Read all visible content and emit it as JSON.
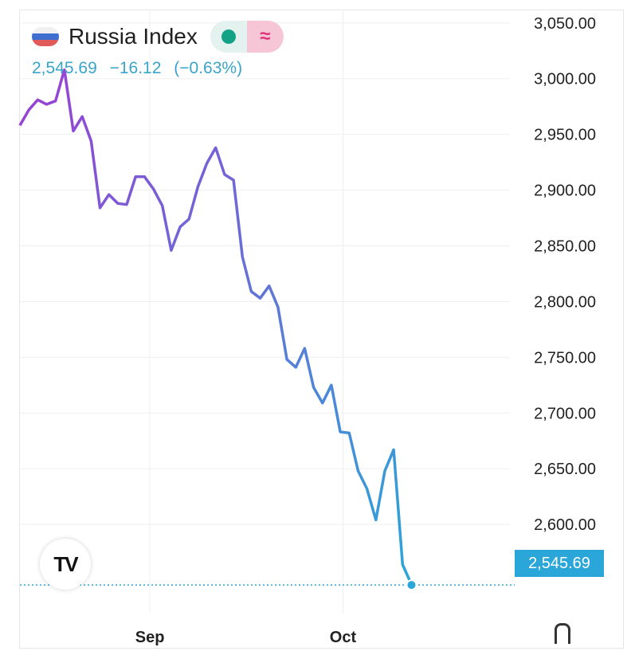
{
  "header": {
    "title": "Russia Index",
    "price": "2,545.69",
    "change": "−16.12",
    "change_pct": "(−0.63%)",
    "dot_icon": "status-dot-icon",
    "wave_icon": "approx-wave-icon",
    "wave_glyph": "≈",
    "flag_icon": "russia-flag-icon"
  },
  "tradingview_logo_text": "TV",
  "colors": {
    "line_start": "#9b3fd4",
    "line_end": "#2ba6d9",
    "quote": "#3aa4c9",
    "last_box": "#2ba6d9",
    "grid": "#efefef"
  },
  "chart_data": {
    "type": "line",
    "title": "Russia Index",
    "xlabel": "",
    "ylabel": "",
    "ylim": [
      2520,
      3062
    ],
    "y_ticks": [
      3050,
      3000,
      2950,
      2900,
      2850,
      2800,
      2750,
      2700,
      2650,
      2600
    ],
    "y_tick_labels": [
      "3,050.00",
      "3,000.00",
      "2,950.00",
      "2,900.00",
      "2,850.00",
      "2,800.00",
      "2,750.00",
      "2,700.00",
      "2,650.00",
      "2,600.00"
    ],
    "x_ticks": [
      {
        "label": "Sep",
        "index": 14.6
      },
      {
        "label": "Oct",
        "index": 36.3
      }
    ],
    "last_value": 2545.69,
    "last_value_label": "2,545.69",
    "grid": true,
    "series": [
      {
        "values": [
          2958,
          2972,
          2981,
          2977,
          2980,
          3008,
          2953,
          2966,
          2944,
          2884,
          2896,
          2888,
          2887,
          2912,
          2912,
          2901,
          2886,
          2846,
          2867,
          2874,
          2903,
          2924,
          2938,
          2914,
          2909,
          2840,
          2809,
          2803,
          2814,
          2795,
          2748,
          2741,
          2758,
          2723,
          2709,
          2725,
          2683,
          2682,
          2648,
          2632,
          2604,
          2648,
          2667,
          2564,
          2546
        ]
      }
    ]
  }
}
